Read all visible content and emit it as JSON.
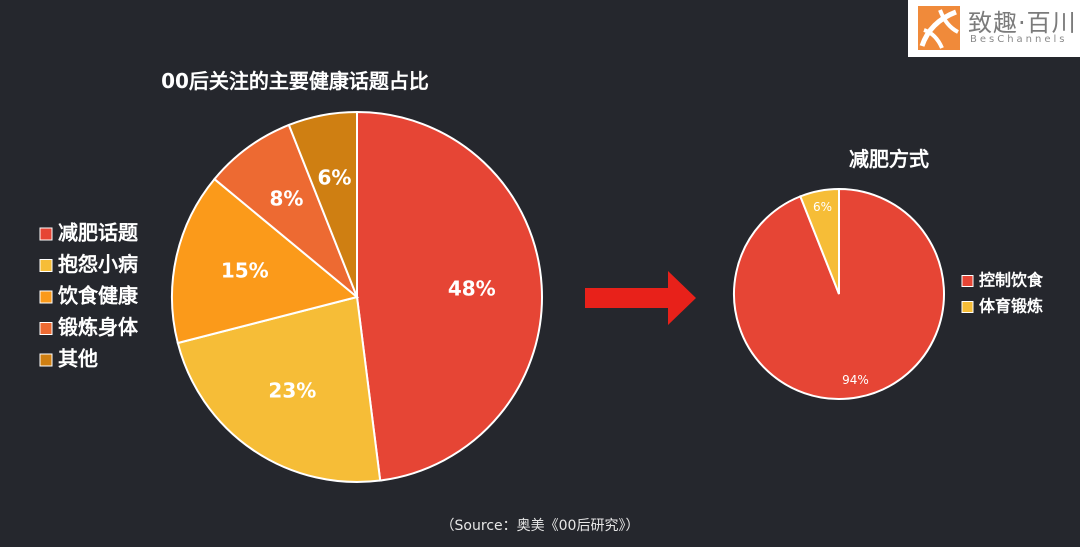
{
  "brand": {
    "name": "致趣·百川",
    "sub": "BesChannels"
  },
  "chart_data": [
    {
      "type": "pie",
      "title": "00后关注的主要健康话题占比",
      "legend_position": "left",
      "slices": [
        {
          "label": "减肥话题",
          "value": 48,
          "value_label": "48%",
          "color": "#e64535"
        },
        {
          "label": "抱怨小病",
          "value": 23,
          "value_label": "23%",
          "color": "#f6bd37"
        },
        {
          "label": "饮食健康",
          "value": 15,
          "value_label": "15%",
          "color": "#fb9a1a"
        },
        {
          "label": "锻炼身体",
          "value": 8,
          "value_label": "8%",
          "color": "#ed6a32"
        },
        {
          "label": "其他",
          "value": 6,
          "value_label": "6%",
          "color": "#cf7f12"
        }
      ]
    },
    {
      "type": "pie",
      "title": "减肥方式",
      "legend_position": "right",
      "slices": [
        {
          "label": "控制饮食",
          "value": 94,
          "value_label": "94%",
          "color": "#e64535"
        },
        {
          "label": "体育锻炼",
          "value": 6,
          "value_label": "6%",
          "color": "#f6bd37"
        }
      ]
    }
  ],
  "source": "（Source：奥美《00后研究》）"
}
